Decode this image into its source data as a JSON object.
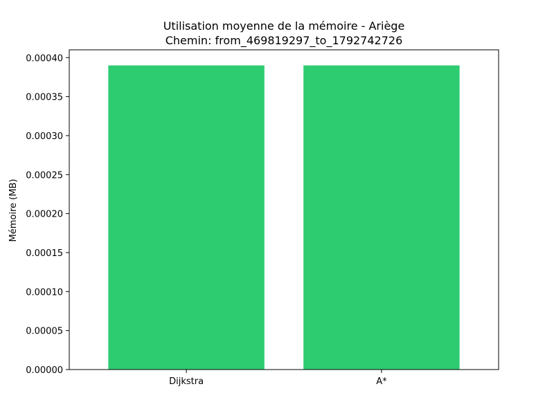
{
  "chart_data": {
    "type": "bar",
    "title": "Utilisation moyenne de la mémoire - Ariège",
    "subtitle": "Chemin: from_469819297_to_1792742726",
    "xlabel": "",
    "ylabel": "Mémoire (MB)",
    "categories": [
      "Dijkstra",
      "A*"
    ],
    "values": [
      0.00039,
      0.00039
    ],
    "ylim": [
      0,
      0.00041
    ],
    "yticks": [
      0,
      5e-05,
      0.0001,
      0.00015,
      0.0002,
      0.00025,
      0.0003,
      0.00035,
      0.0004
    ],
    "ytick_labels": [
      "0.00000",
      "0.00005",
      "0.00010",
      "0.00015",
      "0.00020",
      "0.00025",
      "0.00030",
      "0.00035",
      "0.00040"
    ],
    "bar_color": "#2ecc71",
    "grid": false,
    "legend": "none"
  }
}
